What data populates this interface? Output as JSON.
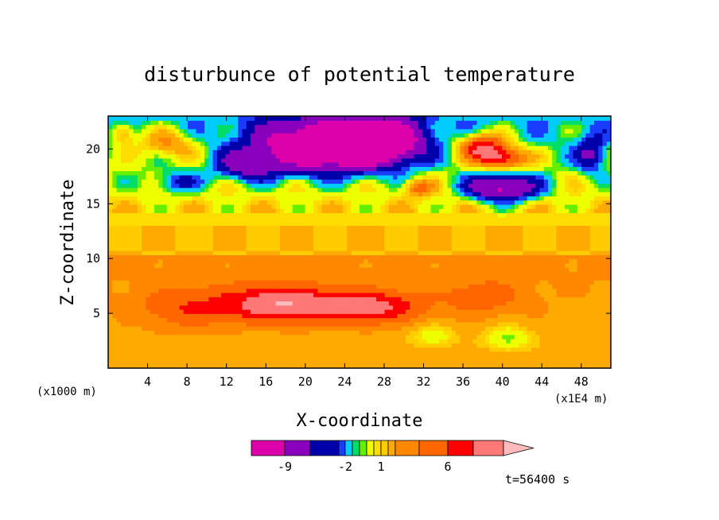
{
  "chart_data": {
    "type": "heatmap",
    "title": "disturbunce of potential temperature",
    "xlabel": "X-coordinate",
    "ylabel": "Z-coordinate",
    "x_unit_left": "(x1000 m)",
    "x_unit_right": "(x1E4 m)",
    "xlim": [
      0,
      51
    ],
    "ylim": [
      0,
      23
    ],
    "x_ticks": [
      "4",
      "8",
      "12",
      "16",
      "20",
      "24",
      "28",
      "32",
      "36",
      "40",
      "44",
      "48"
    ],
    "y_ticks": [
      "5",
      "10",
      "15",
      "20"
    ],
    "colorbar": {
      "colors": [
        "#dd00aa",
        "#8800bb",
        "#0000aa",
        "#1a3cff",
        "#00ccff",
        "#00dd66",
        "#66ee00",
        "#eeff00",
        "#ffdd00",
        "#ffcc00",
        "#ffaa00",
        "#ff8800",
        "#ff6600",
        "#ff0000",
        "#ff7777",
        "#ffbbbb"
      ],
      "labels": [
        "-9",
        "-2",
        "1",
        "6"
      ]
    },
    "time_label": "t=56400 s",
    "features": [
      {
        "x": 17.5,
        "z": 5.9,
        "value": 6,
        "sx": 5.5,
        "sz": 1.6
      },
      {
        "x": 26.5,
        "z": 5.6,
        "value": 5,
        "sx": 5.0,
        "sz": 1.4
      },
      {
        "x": 8.0,
        "z": 5.5,
        "value": 2.5,
        "sx": 5.0,
        "sz": 1.8
      },
      {
        "x": 38.0,
        "z": 6.5,
        "value": 2.0,
        "sx": 4.0,
        "sz": 1.6
      },
      {
        "x": 40.5,
        "z": 2.8,
        "value": -3,
        "sx": 2.2,
        "sz": 1.1
      },
      {
        "x": 33.0,
        "z": 3.0,
        "value": -2.5,
        "sx": 2.0,
        "sz": 1.0
      },
      {
        "x": 22.0,
        "z": 20.3,
        "value": -15,
        "sx": 6.5,
        "sz": 2.2
      },
      {
        "x": 28.0,
        "z": 20.8,
        "value": -10,
        "sx": 4.0,
        "sz": 2.0
      },
      {
        "x": 14.0,
        "z": 18.5,
        "value": -6,
        "sx": 3.0,
        "sz": 1.3
      },
      {
        "x": 40.0,
        "z": 16.5,
        "value": -10,
        "sx": 3.5,
        "sz": 1.2
      },
      {
        "x": 7.0,
        "z": 17.0,
        "value": -3.5,
        "sx": 2.5,
        "sz": 1.0
      },
      {
        "x": 49.0,
        "z": 19.5,
        "value": -5,
        "sx": 1.5,
        "sz": 1.6
      },
      {
        "x": 38.0,
        "z": 20.3,
        "value": 7,
        "sx": 2.5,
        "sz": 1.2
      },
      {
        "x": 40.0,
        "z": 19.2,
        "value": 7,
        "sx": 2.5,
        "sz": 1.0
      },
      {
        "x": 6.0,
        "z": 20.5,
        "value": 4,
        "sx": 3.0,
        "sz": 1.4
      },
      {
        "x": 1.5,
        "z": 21.5,
        "value": 4,
        "sx": 1.2,
        "sz": 1.0
      },
      {
        "x": 31.5,
        "z": 16.5,
        "value": 4,
        "sx": 1.5,
        "sz": 0.8
      }
    ]
  }
}
